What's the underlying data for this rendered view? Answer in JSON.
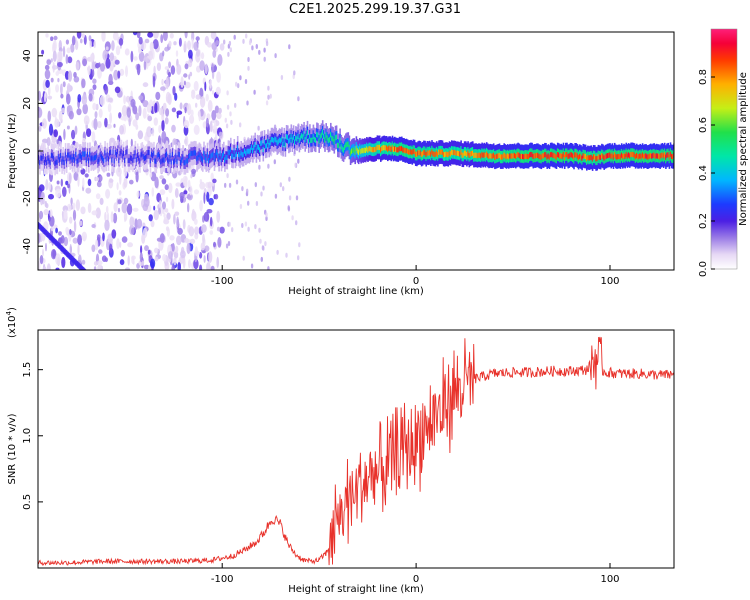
{
  "title": "C2E1.2025.299.19.37.G31",
  "chart_data": [
    {
      "type": "heatmap",
      "title": "C2E1.2025.299.19.37.G31",
      "xlabel": "Height of straight line (km)",
      "ylabel": "Frequency (Hz)",
      "xlim": [
        -195,
        133
      ],
      "ylim": [
        -50,
        50
      ],
      "xticks": [
        -100,
        0,
        100
      ],
      "yticks": [
        -40,
        -20,
        0,
        20,
        40
      ],
      "colorbar": {
        "label": "Normalized spectral amplitude",
        "range": [
          0.0,
          1.0
        ],
        "ticks": [
          "0.0",
          "0.2",
          "0.4",
          "0.6",
          "0.8"
        ]
      },
      "track": [
        {
          "x": -195,
          "y": -4,
          "amp": 0.25
        },
        {
          "x": -170,
          "y": -3,
          "amp": 0.3
        },
        {
          "x": -150,
          "y": -2,
          "amp": 0.25
        },
        {
          "x": -120,
          "y": -3,
          "amp": 0.3
        },
        {
          "x": -100,
          "y": -2,
          "amp": 0.35
        },
        {
          "x": -80,
          "y": 2,
          "amp": 0.4
        },
        {
          "x": -60,
          "y": 6,
          "amp": 0.45
        },
        {
          "x": -45,
          "y": 6,
          "amp": 0.55
        },
        {
          "x": -38,
          "y": 2,
          "amp": 0.55
        },
        {
          "x": -30,
          "y": 0,
          "amp": 0.7
        },
        {
          "x": -20,
          "y": 1,
          "amp": 0.85
        },
        {
          "x": -10,
          "y": 1,
          "amp": 0.9
        },
        {
          "x": 0,
          "y": -1,
          "amp": 0.9
        },
        {
          "x": 20,
          "y": -1,
          "amp": 0.85
        },
        {
          "x": 40,
          "y": -2,
          "amp": 0.9
        },
        {
          "x": 60,
          "y": -2,
          "amp": 0.95
        },
        {
          "x": 80,
          "y": -2,
          "amp": 0.95
        },
        {
          "x": 90,
          "y": -3,
          "amp": 0.9
        },
        {
          "x": 100,
          "y": -2,
          "amp": 0.95
        },
        {
          "x": 133,
          "y": -2,
          "amp": 0.95
        }
      ]
    },
    {
      "type": "line",
      "xlabel": "Height of straight line (km)",
      "ylabel": "SNR (10 * v/v)",
      "y_multiplier": "(x10",
      "y_multiplier_exp": "4",
      "y_multiplier_close": ")",
      "xlim": [
        -195,
        133
      ],
      "ylim": [
        0,
        1.8
      ],
      "xticks": [
        -100,
        0,
        100
      ],
      "yticks": [
        0.5,
        1.0,
        1.5
      ],
      "ytick_labels": [
        "0.5",
        "1.0",
        "1.5"
      ],
      "color": "#e8312a",
      "series": [
        {
          "name": "SNR",
          "x": [
            -195,
            -180,
            -160,
            -140,
            -120,
            -105,
            -95,
            -88,
            -82,
            -78,
            -74,
            -70,
            -66,
            -62,
            -58,
            -54,
            -50,
            -46,
            -42,
            -38,
            -34,
            -30,
            -26,
            -22,
            -18,
            -14,
            -10,
            -6,
            -2,
            2,
            6,
            10,
            14,
            18,
            22,
            26,
            30,
            35,
            40,
            50,
            60,
            70,
            80,
            88,
            91,
            93,
            95,
            98,
            105,
            115,
            125,
            133
          ],
          "y": [
            0.04,
            0.04,
            0.05,
            0.05,
            0.05,
            0.06,
            0.09,
            0.14,
            0.2,
            0.28,
            0.38,
            0.33,
            0.18,
            0.1,
            0.06,
            0.05,
            0.06,
            0.12,
            0.28,
            0.45,
            0.55,
            0.6,
            0.65,
            0.7,
            0.72,
            0.78,
            0.85,
            0.9,
            0.95,
            1.0,
            1.07,
            1.15,
            1.22,
            1.3,
            1.36,
            1.4,
            1.43,
            1.45,
            1.47,
            1.48,
            1.48,
            1.49,
            1.49,
            1.5,
            1.55,
            1.6,
            1.5,
            1.48,
            1.47,
            1.47,
            1.46,
            1.46
          ]
        }
      ]
    }
  ]
}
